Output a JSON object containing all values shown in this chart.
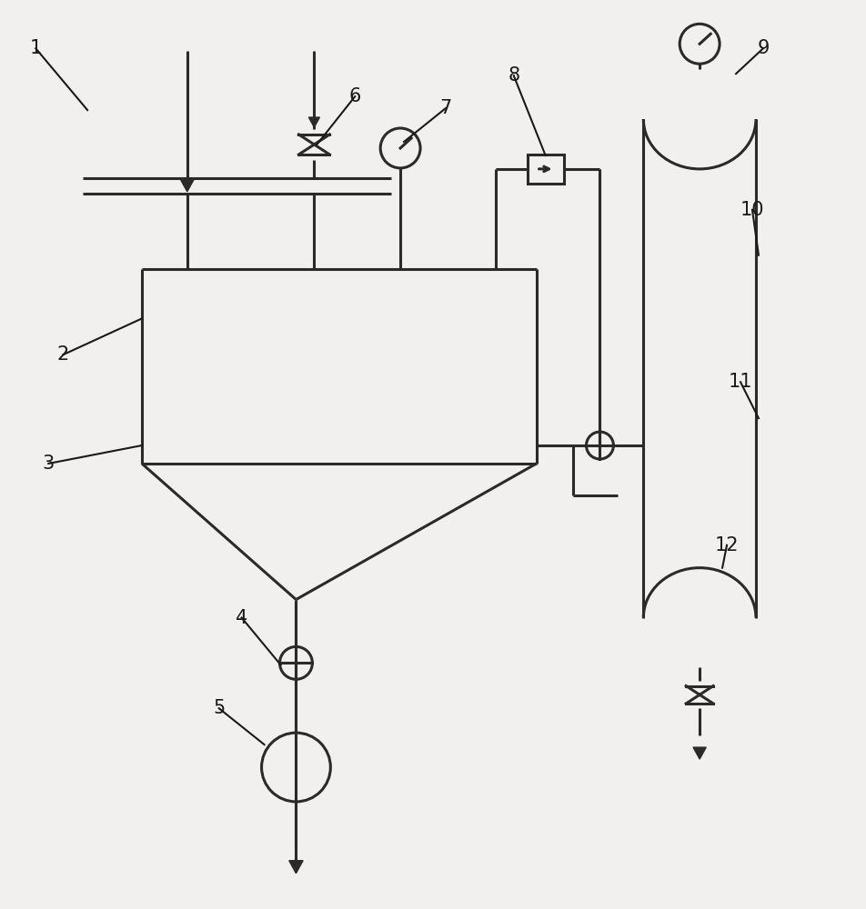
{
  "bg_color": "#f2f0ee",
  "line_color": "#2a2a2a",
  "line_width": 2.2,
  "label_color": "#1a1a1a",
  "label_fontsize": 15,
  "fig_width": 9.52,
  "fig_height": 10.0
}
